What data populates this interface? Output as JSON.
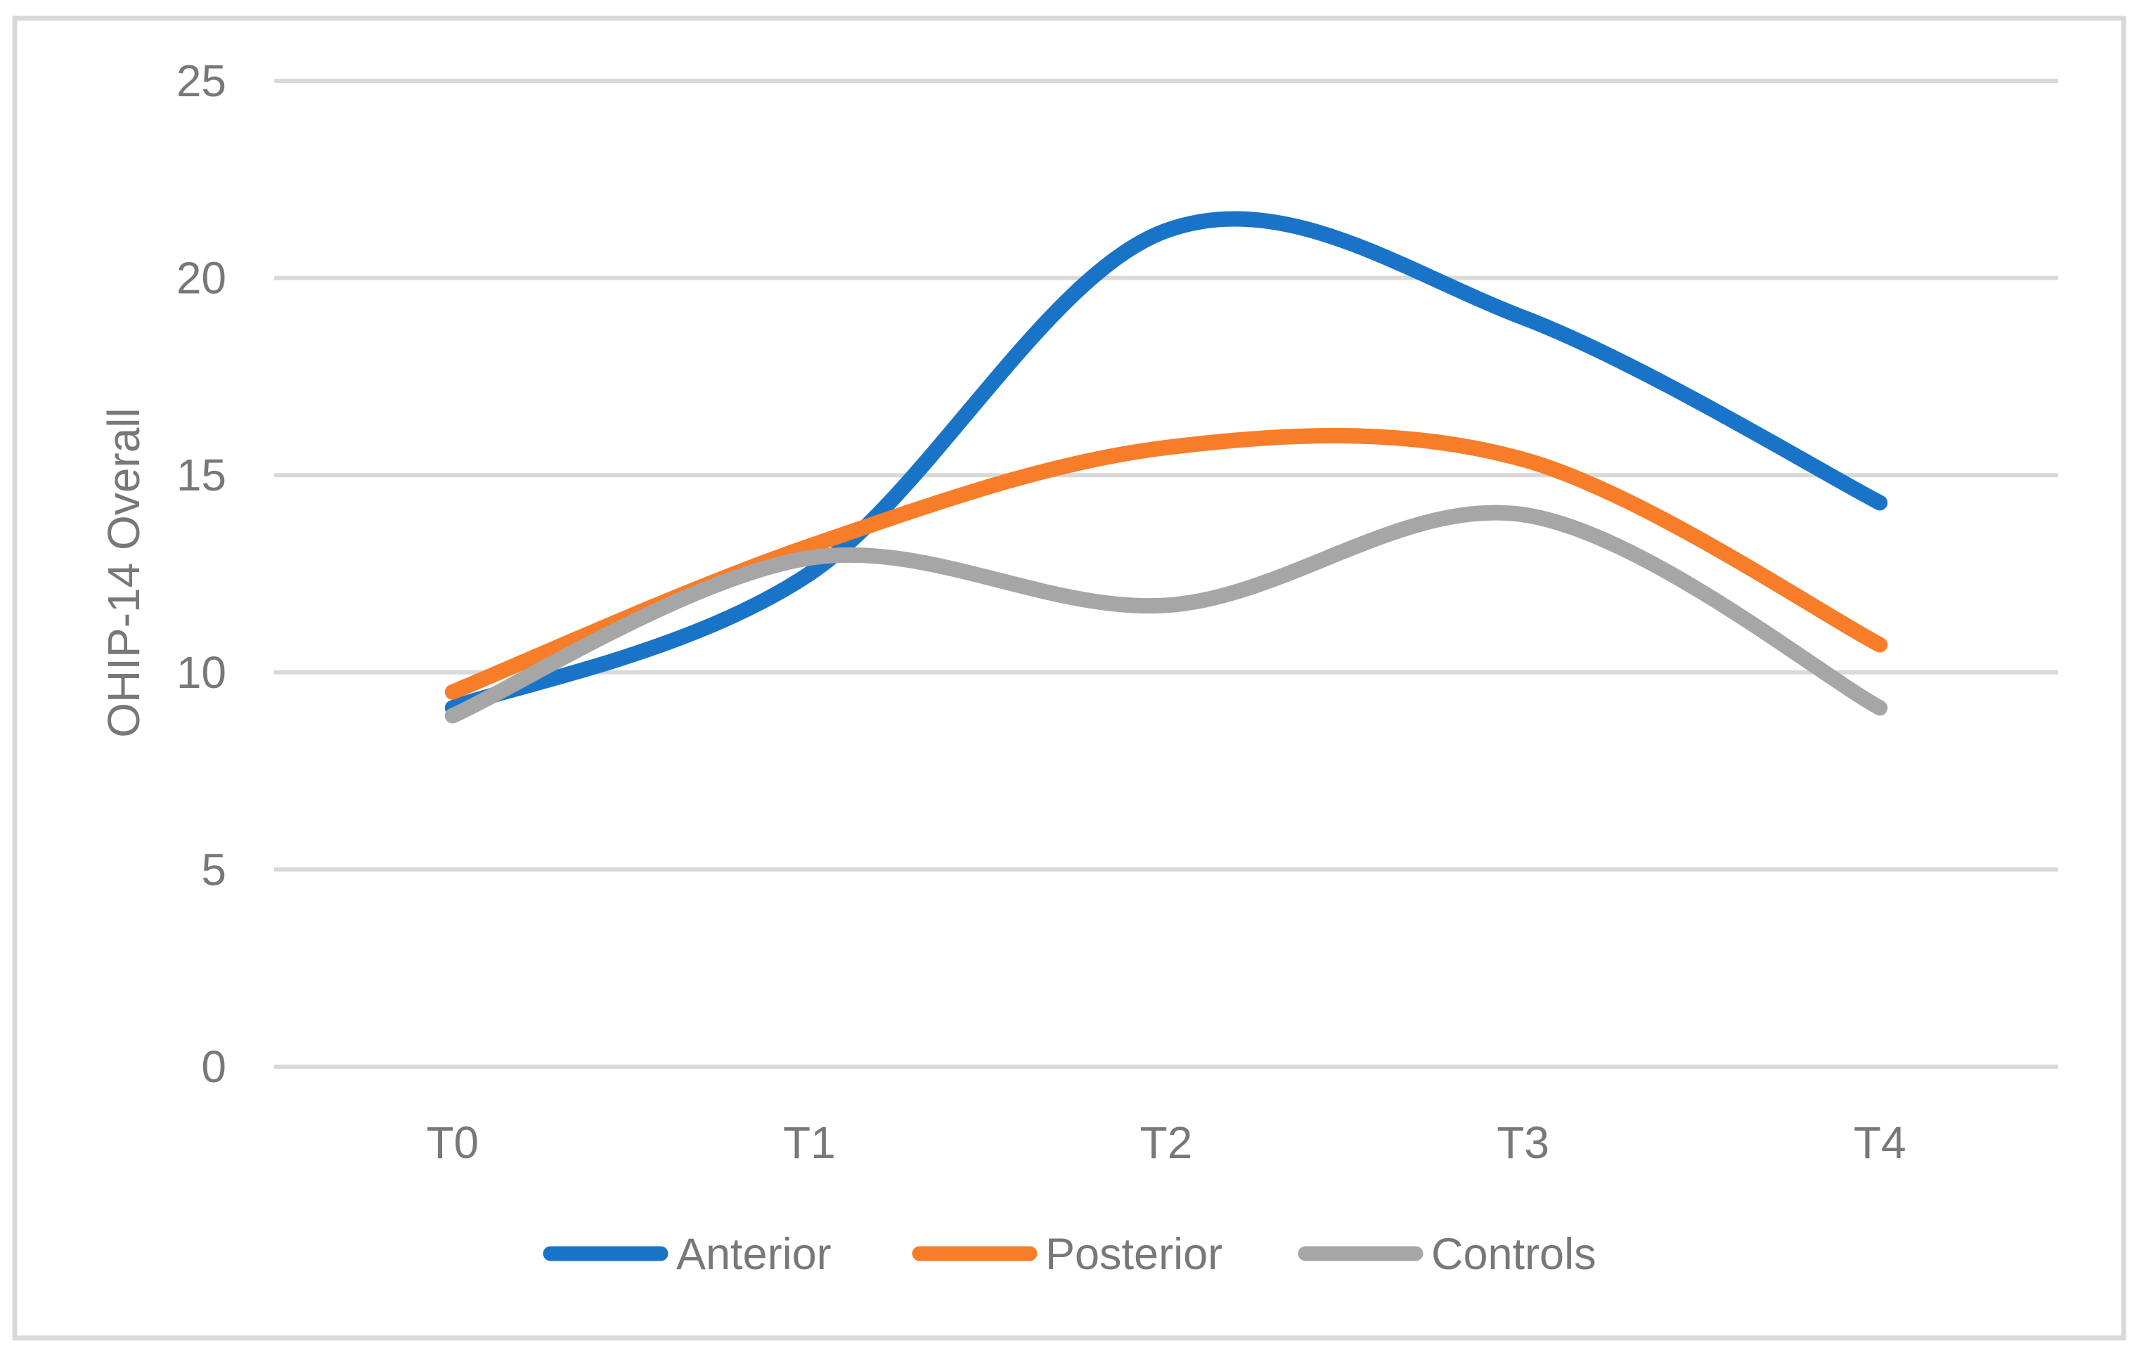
{
  "chart_data": {
    "type": "line",
    "smoothed": true,
    "title": "",
    "xlabel": "",
    "ylabel": "OHIP-14 Overall",
    "categories": [
      "T0",
      "T1",
      "T2",
      "T3",
      "T4"
    ],
    "series": [
      {
        "name": "Anterior",
        "color": "#1974C8",
        "values": [
          9.1,
          12.5,
          21.2,
          19.0,
          14.3
        ]
      },
      {
        "name": "Posterior",
        "color": "#F87D28",
        "values": [
          9.5,
          13.2,
          15.7,
          15.4,
          10.7
        ]
      },
      {
        "name": "Controls",
        "color": "#A6A6A6",
        "values": [
          8.9,
          12.9,
          11.7,
          14.0,
          9.1
        ]
      }
    ],
    "ylim": [
      0,
      25
    ],
    "yticks": [
      0,
      5,
      10,
      15,
      20,
      25
    ],
    "grid": true,
    "legend_position": "bottom"
  },
  "style": {
    "grid_color": "#D9D9D9",
    "border_color": "#D9D9D9",
    "text_color": "#787878",
    "background": "#FFFFFF"
  }
}
